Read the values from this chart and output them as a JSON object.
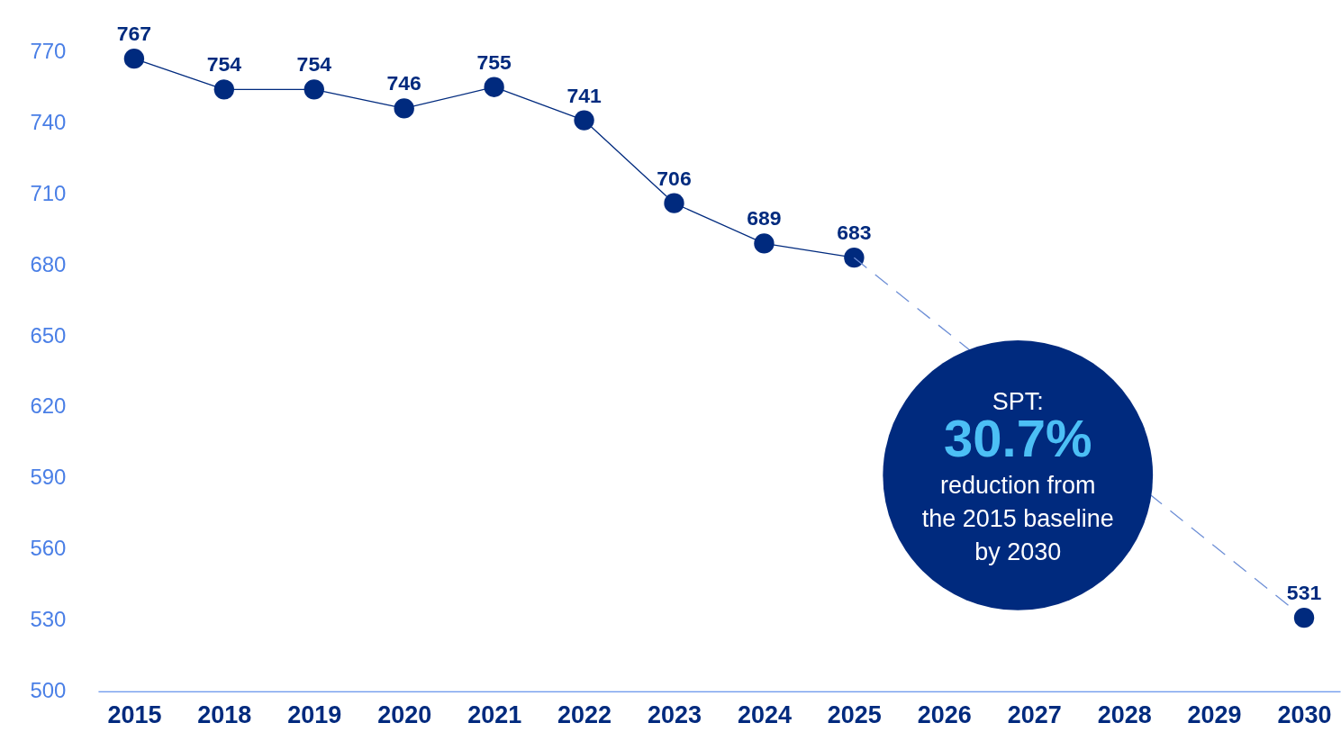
{
  "chart_data": {
    "type": "line",
    "categories": [
      "2015",
      "2018",
      "2019",
      "2020",
      "2021",
      "2022",
      "2023",
      "2024",
      "2025",
      "2026",
      "2027",
      "2028",
      "2029",
      "2030"
    ],
    "series": [
      {
        "color": "#002a7e",
        "marker": "circle",
        "line_style": "solid",
        "values": [
          767,
          754,
          754,
          746,
          755,
          741,
          706,
          689,
          683,
          null,
          null,
          null,
          null,
          null
        ]
      },
      {
        "color": "#6e8fd6",
        "marker": "none",
        "line_style": "dashed",
        "data_labels": false,
        "values": [
          null,
          null,
          null,
          null,
          null,
          null,
          null,
          null,
          683,
          null,
          null,
          null,
          null,
          531
        ]
      },
      {
        "type": "scatter",
        "color": "#002a7e",
        "marker": "circle",
        "values": [
          null,
          null,
          null,
          null,
          null,
          null,
          null,
          null,
          null,
          null,
          null,
          null,
          null,
          531
        ]
      }
    ],
    "ylim": [
      500,
      770
    ],
    "yticks": [
      500,
      530,
      560,
      590,
      620,
      650,
      680,
      710,
      740,
      770
    ],
    "data_labels": true,
    "grid": false,
    "annotations": [
      "SPT:",
      "30.7%",
      "reduction from\nthe 2015 baseline\nby 2030"
    ]
  }
}
